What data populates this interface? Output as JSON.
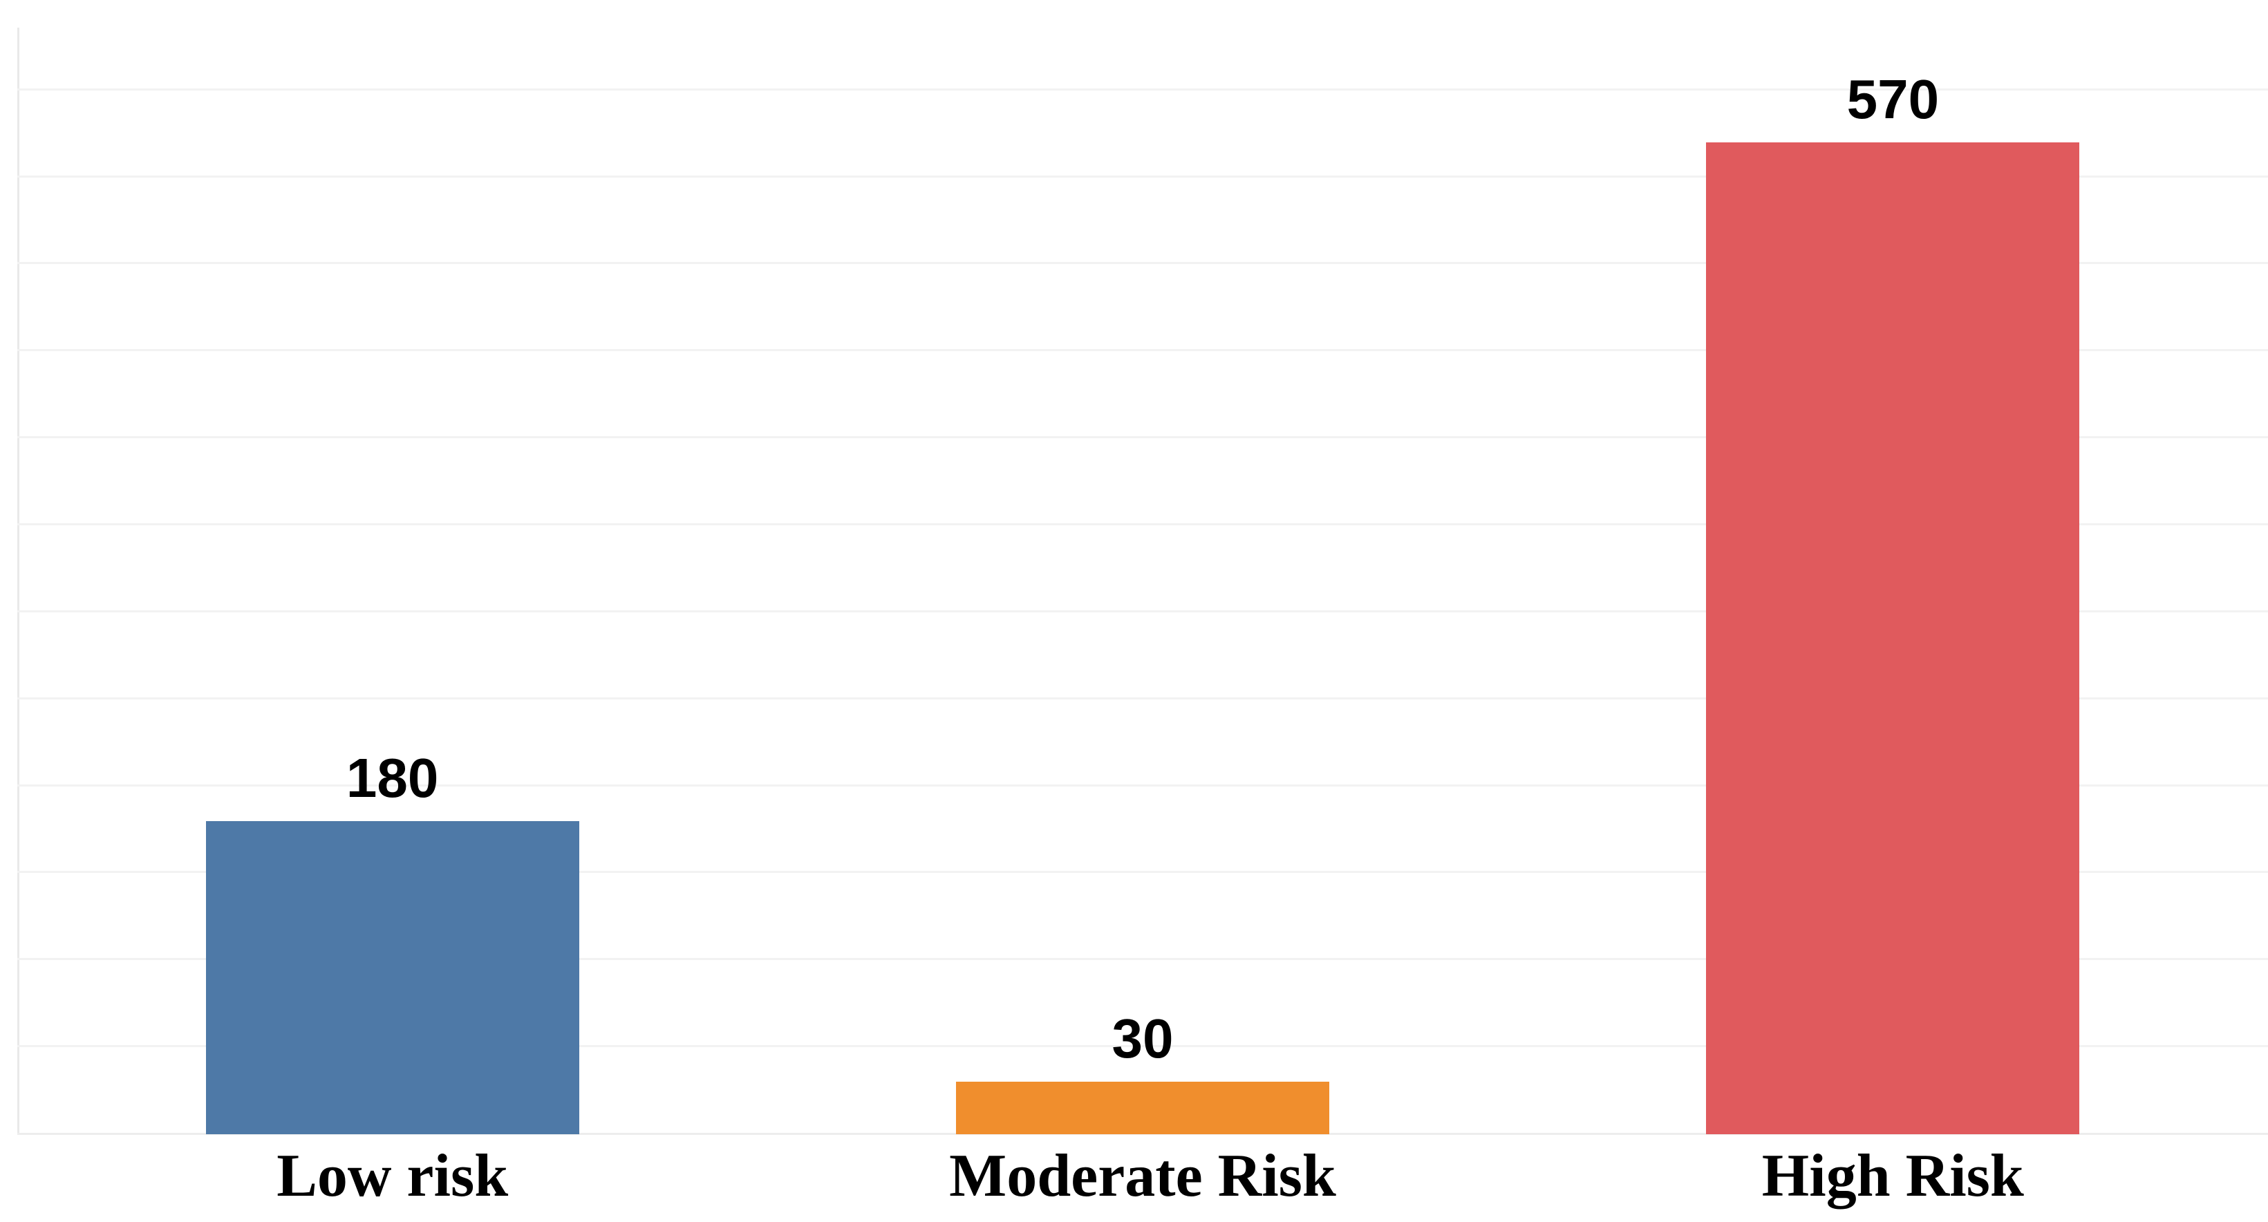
{
  "chart_data": {
    "type": "bar",
    "title": "",
    "xlabel": "",
    "ylabel": "",
    "categories": [
      "Low risk",
      "Moderate Risk",
      "High Risk"
    ],
    "values": [
      180,
      30,
      570
    ],
    "data_labels": [
      "180",
      "30",
      "570"
    ],
    "bar_colors": [
      "#4E79A7",
      "#F08E2D",
      "#E05A5D"
    ],
    "ylim": [
      0,
      636
    ],
    "gridlines": {
      "orientation": "horizontal",
      "step": 50,
      "max": 600,
      "color": "#F2F2F2"
    },
    "y_axis_ticks_shown": false,
    "axis_line_color": "#E9E9E9",
    "baseline_color": "#EDEDED",
    "background_color": "#FFFFFF",
    "label_text_color": "#000000",
    "legend_position": "none"
  }
}
